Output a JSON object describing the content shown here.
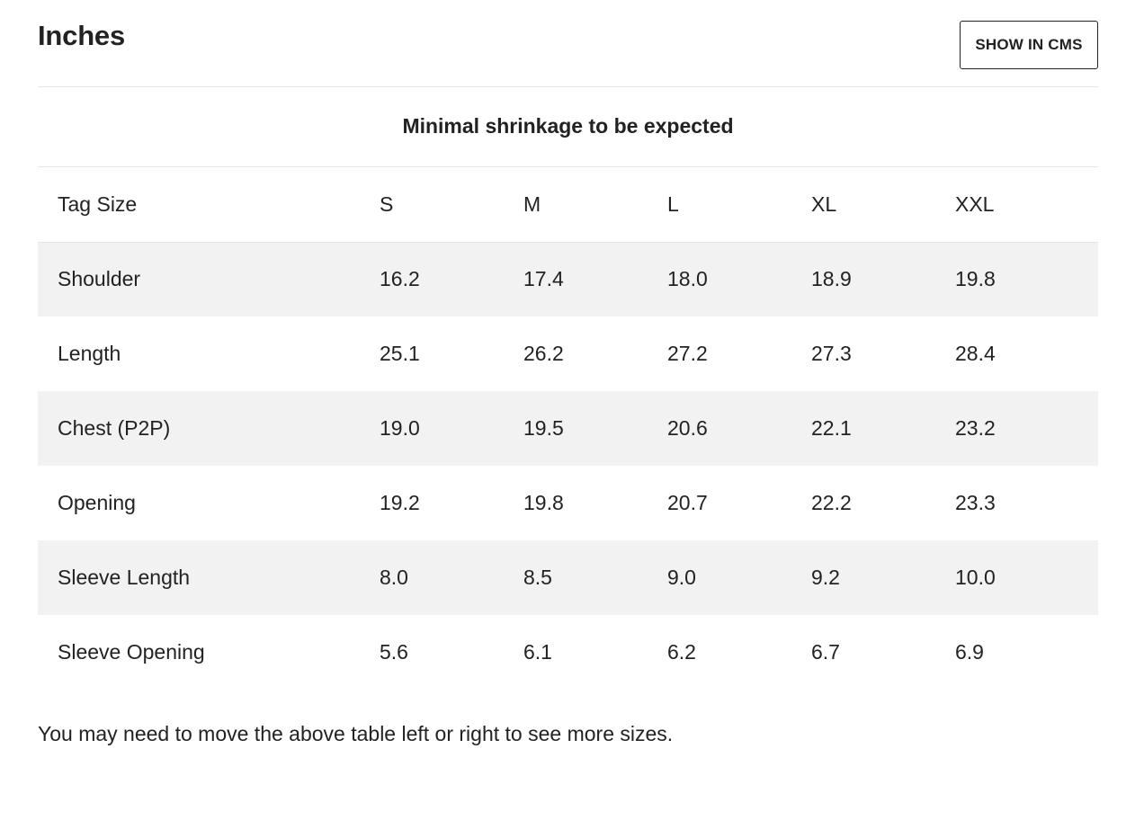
{
  "header": {
    "title": "Inches",
    "cms_button_label": "SHOW IN CMS"
  },
  "note": "Minimal shrinkage to be expected",
  "table": {
    "columns": [
      "Tag Size",
      "S",
      "M",
      "L",
      "XL",
      "XXL"
    ],
    "rows": [
      [
        "Shoulder",
        "16.2",
        "17.4",
        "18.0",
        "18.9",
        "19.8"
      ],
      [
        "Length",
        "25.1",
        "26.2",
        "27.2",
        "27.3",
        "28.4"
      ],
      [
        "Chest (P2P)",
        "19.0",
        "19.5",
        "20.6",
        "22.1",
        "23.2"
      ],
      [
        "Opening",
        "19.2",
        "19.8",
        "20.7",
        "22.2",
        "23.3"
      ],
      [
        "Sleeve Length",
        "8.0",
        "8.5",
        "9.0",
        "9.2",
        "10.0"
      ],
      [
        "Sleeve Opening",
        "5.6",
        "6.1",
        "6.2",
        "6.7",
        "6.9"
      ]
    ]
  },
  "footer": {
    "hint": "You may need to move the above table left or right to see more sizes."
  },
  "colors": {
    "text": "#222222",
    "stripe": "#f2f2f2",
    "divider": "#e6e6e6",
    "background": "#ffffff"
  }
}
